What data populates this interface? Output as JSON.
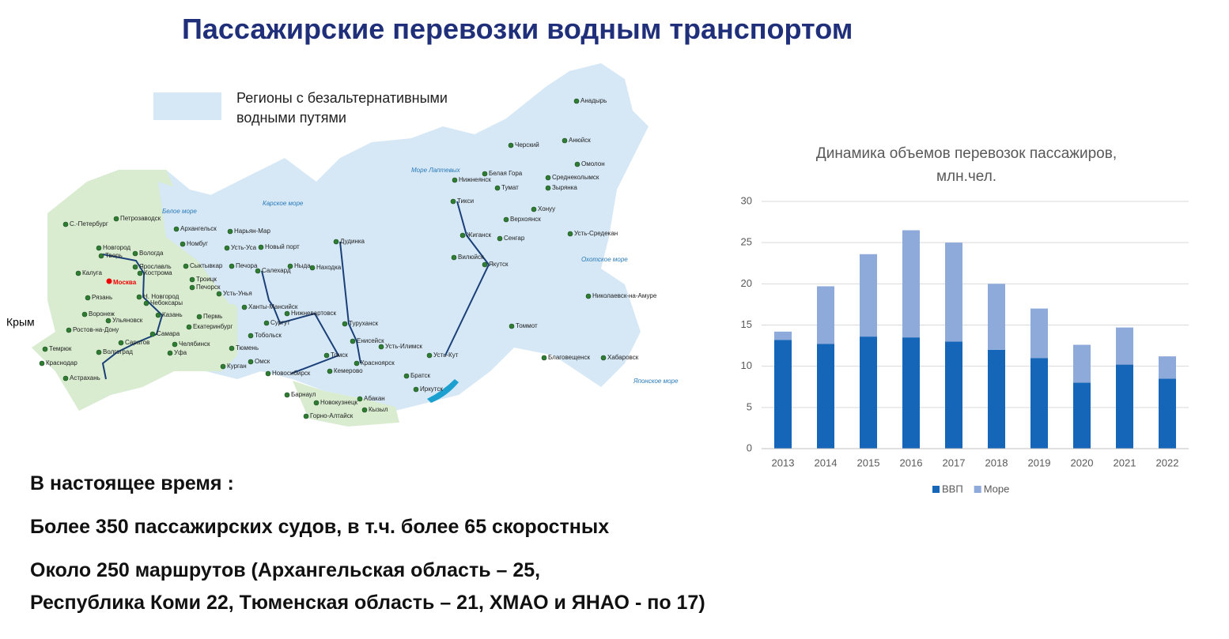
{
  "title": "Пассажирские перевозки водным транспортом",
  "map": {
    "legend": "Регионы с безальтернативными водными путями",
    "crimea": "Крым",
    "seas": [
      "Белое море",
      "Карское море",
      "Море Лаптевых",
      "Охотское море",
      "Японское море"
    ],
    "capital": "Москва",
    "cities": [
      "С.-Петербург",
      "Петрозаводск",
      "Архангельск",
      "Нарьян-Мар",
      "Номбуг",
      "Усть-Уса",
      "Новый порт",
      "Новгород",
      "Вологда",
      "Тверь",
      "Ярославль",
      "Кострома",
      "Сыктывкар",
      "Печора",
      "Салехард",
      "Ныда",
      "Находка",
      "Дудинка",
      "Калуга",
      "Рязань",
      "Троицк",
      "Печорск",
      "Усть-Унья",
      "Н. Новгород",
      "Чебоксары",
      "Воронеж",
      "Ульяновск",
      "Казань",
      "Пермь",
      "Ханты-Мансийск",
      "Нижневартовск",
      "Екатеринбург",
      "Сургут",
      "Туруханск",
      "Ростов-на-Дону",
      "Самара",
      "Саратов",
      "Тобольск",
      "Енисейск",
      "Усть-Илимск",
      "Челябинск",
      "Тюмень",
      "Темрюк",
      "Волгоград",
      "Уфа",
      "Томск",
      "Усть-Кут",
      "Краснодар",
      "Омск",
      "Курган",
      "Новосибирск",
      "Кемерово",
      "Красноярск",
      "Братск",
      "Астрахань",
      "Барнаул",
      "Иркутск",
      "Абакан",
      "Новокузнецк",
      "Кызыл",
      "Горно-Алтайск",
      "Анадырь",
      "Анюйск",
      "Черский",
      "Омолон",
      "Белая Гора",
      "Нижнеянск",
      "Тумат",
      "Среднеколымск",
      "Зырянка",
      "Тикси",
      "Хонуу",
      "Верхоянск",
      "Усть-Средекан",
      "Жиганск",
      "Сенгар",
      "Вилюйск",
      "Якутск",
      "Николаевск-на-Амуре",
      "Томмот",
      "Благовещенск",
      "Хабаровск"
    ]
  },
  "chart_data": {
    "type": "bar",
    "stacked": true,
    "title": "Динамика объемов перевозок пассажиров, млн.чел.",
    "categories": [
      "2013",
      "2014",
      "2015",
      "2016",
      "2017",
      "2018",
      "2019",
      "2020",
      "2021",
      "2022"
    ],
    "series": [
      {
        "name": "ВВП",
        "color": "#1565b8",
        "values": [
          13.2,
          12.7,
          13.6,
          13.5,
          13.0,
          12.0,
          11.0,
          8.0,
          10.2,
          8.5
        ]
      },
      {
        "name": "Море",
        "color": "#8eaadb",
        "values": [
          1.0,
          7.0,
          10.0,
          13.0,
          12.0,
          8.0,
          6.0,
          4.6,
          4.5,
          2.7
        ]
      }
    ],
    "ylim": [
      0,
      30
    ],
    "yticks": [
      0,
      5,
      10,
      15,
      20,
      25,
      30
    ],
    "grid": true,
    "legend": "bottom"
  },
  "bottom": {
    "heading": "В настоящее время :",
    "lines": [
      "Более 350 пассажирских судов, в т.ч. более 65 скоростных",
      "Около 250 маршрутов (Архангельская область – 25,",
      "Республика Коми 22, Тюменская область – 21, ХМАО и ЯНАО - по 17)"
    ]
  }
}
